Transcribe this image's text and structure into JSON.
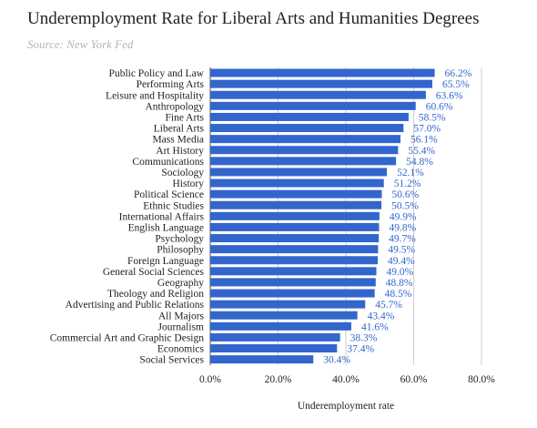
{
  "chart_data": {
    "type": "bar",
    "orientation": "horizontal",
    "title": "Underemployment Rate for Liberal Arts and Humanities Degrees",
    "source": "Source: New York Fed",
    "xlabel": "Underemployment rate",
    "xlim": [
      0,
      80
    ],
    "xticks": [
      "0.0%",
      "20.0%",
      "40.0%",
      "60.0%",
      "80.0%"
    ],
    "grid": true,
    "color": "#3366cc",
    "categories": [
      "Public Policy and Law",
      "Performing Arts",
      "Leisure and Hospitality",
      "Anthropology",
      "Fine Arts",
      "Liberal Arts",
      "Mass Media",
      "Art History",
      "Communications",
      "Sociology",
      "History",
      "Political Science",
      "Ethnic Studies",
      "International Affairs",
      "English Language",
      "Psychology",
      "Philosophy",
      "Foreign Language",
      "General Social Sciences",
      "Geography",
      "Theology and Religion",
      "Advertising and Public Relations",
      "All Majors",
      "Journalism",
      "Commercial Art and Graphic Design",
      "Economics",
      "Social Services"
    ],
    "values": [
      66.2,
      65.5,
      63.6,
      60.6,
      58.5,
      57.0,
      56.1,
      55.4,
      54.8,
      52.1,
      51.2,
      50.6,
      50.5,
      49.9,
      49.8,
      49.7,
      49.5,
      49.4,
      49.0,
      48.8,
      48.5,
      45.7,
      43.4,
      41.6,
      38.3,
      37.4,
      30.4
    ],
    "value_labels": [
      "66.2%",
      "65.5%",
      "63.6%",
      "60.6%",
      "58.5%",
      "57.0%",
      "56.1%",
      "55.4%",
      "54.8%",
      "52.1%",
      "51.2%",
      "50.6%",
      "50.5%",
      "49.9%",
      "49.8%",
      "49.7%",
      "49.5%",
      "49.4%",
      "49.0%",
      "48.8%",
      "48.5%",
      "45.7%",
      "43.4%",
      "41.6%",
      "38.3%",
      "37.4%",
      "30.4%"
    ]
  }
}
